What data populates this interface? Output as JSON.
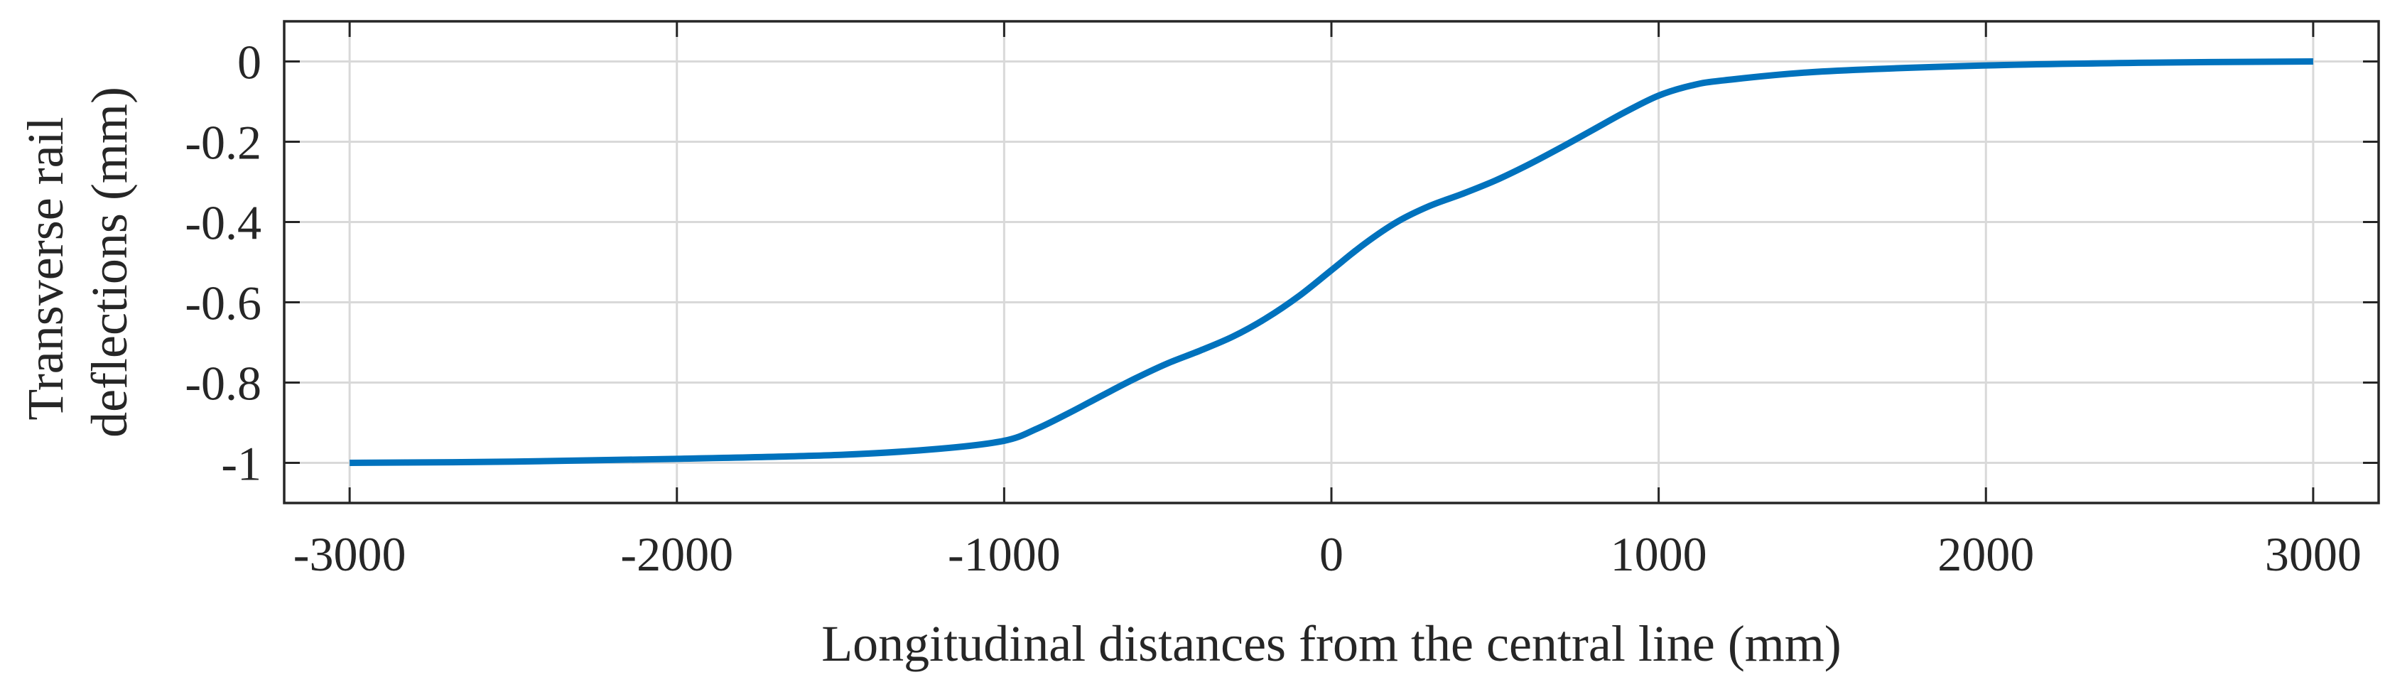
{
  "chart_data": {
    "type": "line",
    "title": "",
    "xlabel": "Longitudinal distances from the central line (mm)",
    "ylabel": [
      "Transverse rail",
      "deflections (mm)"
    ],
    "xlim": [
      -3200,
      3200
    ],
    "ylim": [
      -1.1,
      0.1
    ],
    "xticks": [
      -3000,
      -2000,
      -1000,
      0,
      1000,
      2000,
      3000
    ],
    "xtick_labels": [
      "-3000",
      "-2000",
      "-1000",
      "0",
      "1000",
      "2000",
      "3000"
    ],
    "yticks": [
      0,
      -0.2,
      -0.4,
      -0.6,
      -0.8,
      -1
    ],
    "ytick_labels": [
      "0",
      "-0.2",
      "-0.4",
      "-0.6",
      "-0.8",
      "-1"
    ],
    "grid": true,
    "legend": "none",
    "series": [
      {
        "color": "#0072bd",
        "x": [
          -3000,
          -2500,
          -2000,
          -1500,
          -1200,
          -1000,
          -900,
          -800,
          -700,
          -600,
          -500,
          -400,
          -300,
          -200,
          -100,
          0,
          100,
          200,
          300,
          400,
          500,
          600,
          700,
          800,
          900,
          1000,
          1100,
          1200,
          1500,
          2000,
          2500,
          3000
        ],
        "y": [
          -1.0,
          -0.997,
          -0.99,
          -0.98,
          -0.965,
          -0.945,
          -0.915,
          -0.875,
          -0.832,
          -0.79,
          -0.752,
          -0.72,
          -0.685,
          -0.64,
          -0.585,
          -0.52,
          -0.455,
          -0.4,
          -0.36,
          -0.33,
          -0.297,
          -0.258,
          -0.215,
          -0.17,
          -0.125,
          -0.085,
          -0.06,
          -0.047,
          -0.025,
          -0.01,
          -0.003,
          0.0
        ]
      }
    ]
  }
}
